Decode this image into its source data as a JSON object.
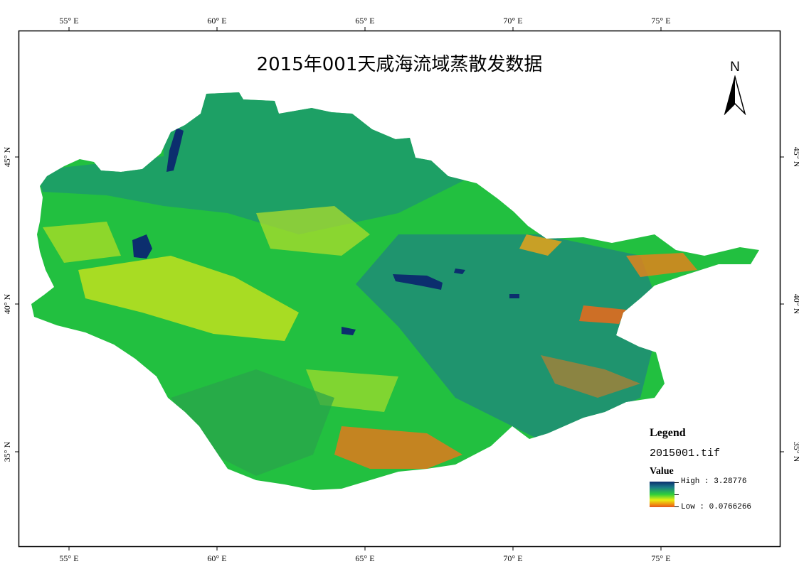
{
  "title": "2015年001天咸海流域蒸散发数据",
  "north_label": "N",
  "axes": {
    "x_ticks": [
      "55° E",
      "60° E",
      "65° E",
      "70° E",
      "75° E"
    ],
    "y_ticks": [
      "45° N",
      "40° N",
      "35° N"
    ]
  },
  "legend": {
    "title": "Legend",
    "layer": "2015001.tif",
    "field": "Value",
    "high_label": "High : 3.28776",
    "low_label": "Low : 0.0766266"
  },
  "colors": {
    "ramp_high": "#0c2e6e",
    "ramp_mid": "#2fcf3a",
    "ramp_low": "#e3541c"
  }
}
